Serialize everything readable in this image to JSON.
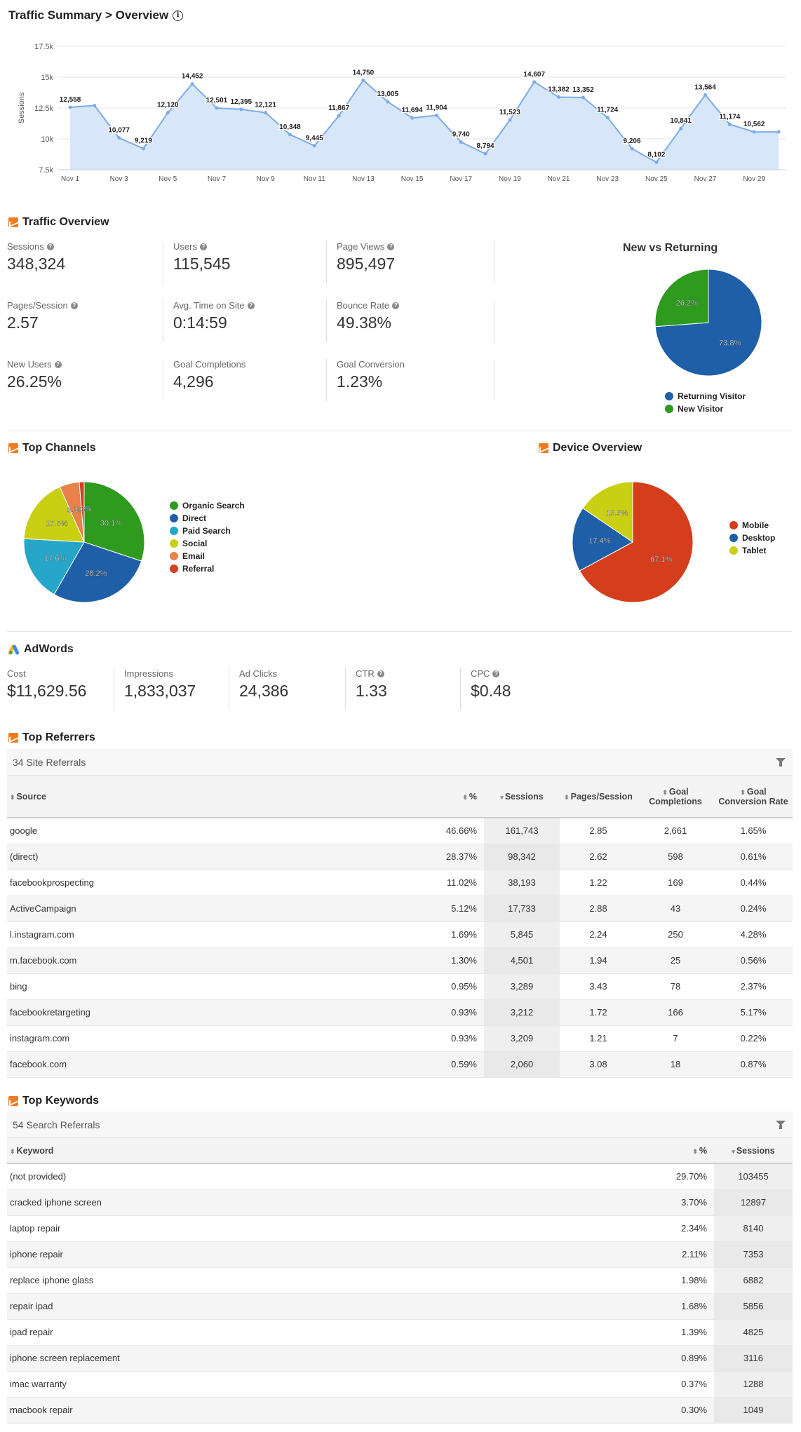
{
  "header": {
    "title": "Traffic Summary > Overview"
  },
  "chart_data": [
    {
      "type": "area",
      "ylabel": "Sessions",
      "ylim": [
        7500,
        17500
      ],
      "yticks": [
        "7.5k",
        "10k",
        "12.5k",
        "15k",
        "17.5k"
      ],
      "ytick_values": [
        7500,
        10000,
        12500,
        15000,
        17500
      ],
      "x": [
        "Nov 1",
        "Nov 2",
        "Nov 3",
        "Nov 4",
        "Nov 5",
        "Nov 6",
        "Nov 7",
        "Nov 8",
        "Nov 9",
        "Nov 10",
        "Nov 11",
        "Nov 12",
        "Nov 13",
        "Nov 14",
        "Nov 15",
        "Nov 16",
        "Nov 17",
        "Nov 18",
        "Nov 19",
        "Nov 20",
        "Nov 21",
        "Nov 22",
        "Nov 23",
        "Nov 24",
        "Nov 25",
        "Nov 26",
        "Nov 27",
        "Nov 28",
        "Nov 29",
        "Nov 30"
      ],
      "xtick_labels": [
        "Nov 1",
        "Nov 3",
        "Nov 5",
        "Nov 7",
        "Nov 9",
        "Nov 11",
        "Nov 13",
        "Nov 15",
        "Nov 17",
        "Nov 19",
        "Nov 21",
        "Nov 23",
        "Nov 25",
        "Nov 27",
        "Nov 29"
      ],
      "values": [
        12558,
        12700,
        10077,
        9219,
        12120,
        14452,
        12501,
        12395,
        12121,
        10348,
        9445,
        11867,
        14750,
        13005,
        11694,
        11904,
        9740,
        8794,
        11523,
        14607,
        13382,
        13352,
        11724,
        9206,
        8102,
        10841,
        13564,
        11174,
        10562,
        10562
      ],
      "labels": [
        "12,558",
        null,
        "10,077",
        "9,219",
        "12,120",
        "14,452",
        "12,501",
        "12,395",
        "12,121",
        "10,348",
        "9,445",
        "11,867",
        "14,750",
        "13,005",
        "11,694",
        "11,904",
        "9,740",
        "8,794",
        "11,523",
        "14,607",
        "13,382",
        "13,352",
        "11,724",
        "9,206",
        "8,102",
        "10,841",
        "13,564",
        "11,174",
        "10,562",
        null
      ],
      "color": "#7cabe8",
      "fill": "#d7e6f8"
    },
    {
      "type": "pie",
      "title": "New vs Returning",
      "slices": [
        {
          "name": "Returning Visitor",
          "value": 73.8,
          "label": "73.8%",
          "color": "#1f5fa8"
        },
        {
          "name": "New Visitor",
          "value": 26.2,
          "label": "26.2%",
          "color": "#2e9a1e"
        }
      ]
    },
    {
      "type": "pie",
      "title": "Top Channels",
      "slices": [
        {
          "name": "Organic Search",
          "value": 30.1,
          "label": "30.1%",
          "color": "#2e9a1e"
        },
        {
          "name": "Direct",
          "value": 28.2,
          "label": "28.2%",
          "color": "#1f5fa8"
        },
        {
          "name": "Paid Search",
          "value": 17.6,
          "label": "17.6%",
          "color": "#26a6c9"
        },
        {
          "name": "Social",
          "value": 17.5,
          "label": "17.5%",
          "color": "#c9cf12"
        },
        {
          "name": "Email",
          "value": 5.3,
          "label": "5.3%",
          "color": "#e8824a"
        },
        {
          "name": "Referral",
          "value": 1.3,
          "label": "1.3%",
          "color": "#d43e22"
        }
      ]
    },
    {
      "type": "pie",
      "title": "Device Overview",
      "slices": [
        {
          "name": "Mobile",
          "value": 67.1,
          "label": "67.1%",
          "color": "#d43e1c"
        },
        {
          "name": "Desktop",
          "value": 17.4,
          "label": "17.4%",
          "color": "#1f5fa8"
        },
        {
          "name": "Tablet",
          "value": 15.5,
          "label": "15.5%",
          "color": "#c9cf12"
        }
      ]
    }
  ],
  "traffic": {
    "title": "Traffic Overview",
    "metrics": [
      {
        "label": "Sessions",
        "value": "348,324"
      },
      {
        "label": "Users",
        "value": "115,545"
      },
      {
        "label": "Page Views",
        "value": "895,497"
      },
      {
        "label": "Pages/Session",
        "value": "2.57"
      },
      {
        "label": "Avg. Time on Site",
        "value": "0:14:59"
      },
      {
        "label": "Bounce Rate",
        "value": "49.38%"
      },
      {
        "label": "New Users",
        "value": "26.25%"
      },
      {
        "label": "Goal Completions",
        "value": "4,296"
      },
      {
        "label": "Goal Conversion",
        "value": "1.23%"
      }
    ]
  },
  "channels": {
    "title": "Top Channels"
  },
  "devices": {
    "title": "Device Overview"
  },
  "adwords": {
    "title": "AdWords",
    "metrics": [
      {
        "label": "Cost",
        "value": "$11,629.56"
      },
      {
        "label": "Impressions",
        "value": "1,833,037"
      },
      {
        "label": "Ad Clicks",
        "value": "24,386"
      },
      {
        "label": "CTR",
        "value": "1.33"
      },
      {
        "label": "CPC",
        "value": "$0.48"
      }
    ]
  },
  "referrers": {
    "title": "Top Referrers",
    "count_label": "34 Site Referrals",
    "headers": [
      "Source",
      "%",
      "Sessions",
      "Pages/Session",
      "Goal Completions",
      "Goal Conversion Rate"
    ],
    "rows": [
      [
        "google",
        "46.66%",
        "161,743",
        "2.85",
        "2,661",
        "1.65%"
      ],
      [
        "(direct)",
        "28.37%",
        "98,342",
        "2.62",
        "598",
        "0.61%"
      ],
      [
        "facebookprospecting",
        "11.02%",
        "38,193",
        "1.22",
        "169",
        "0.44%"
      ],
      [
        "ActiveCampaign",
        "5.12%",
        "17,733",
        "2.88",
        "43",
        "0.24%"
      ],
      [
        "l.instagram.com",
        "1.69%",
        "5,845",
        "2.24",
        "250",
        "4.28%"
      ],
      [
        "m.facebook.com",
        "1.30%",
        "4,501",
        "1.94",
        "25",
        "0.56%"
      ],
      [
        "bing",
        "0.95%",
        "3,289",
        "3.43",
        "78",
        "2.37%"
      ],
      [
        "facebookretargeting",
        "0.93%",
        "3,212",
        "1.72",
        "166",
        "5.17%"
      ],
      [
        "instagram.com",
        "0.93%",
        "3,209",
        "1.21",
        "7",
        "0.22%"
      ],
      [
        "facebook.com",
        "0.59%",
        "2,060",
        "3.08",
        "18",
        "0.87%"
      ]
    ]
  },
  "keywords": {
    "title": "Top Keywords",
    "count_label": "54 Search Referrals",
    "headers": [
      "Keyword",
      "%",
      "Sessions"
    ],
    "rows": [
      [
        "(not provided)",
        "29.70%",
        "103455"
      ],
      [
        "cracked iphone screen",
        "3.70%",
        "12897"
      ],
      [
        "laptop repair",
        "2.34%",
        "8140"
      ],
      [
        "iphone repair",
        "2.11%",
        "7353"
      ],
      [
        "replace iphone glass",
        "1.98%",
        "6882"
      ],
      [
        "repair ipad",
        "1.68%",
        "5856"
      ],
      [
        "ipad repair",
        "1.39%",
        "4825"
      ],
      [
        "iphone screen replacement",
        "0.89%",
        "3116"
      ],
      [
        "imac warranty",
        "0.37%",
        "1288"
      ],
      [
        "macbook repair",
        "0.30%",
        "1049"
      ]
    ]
  }
}
